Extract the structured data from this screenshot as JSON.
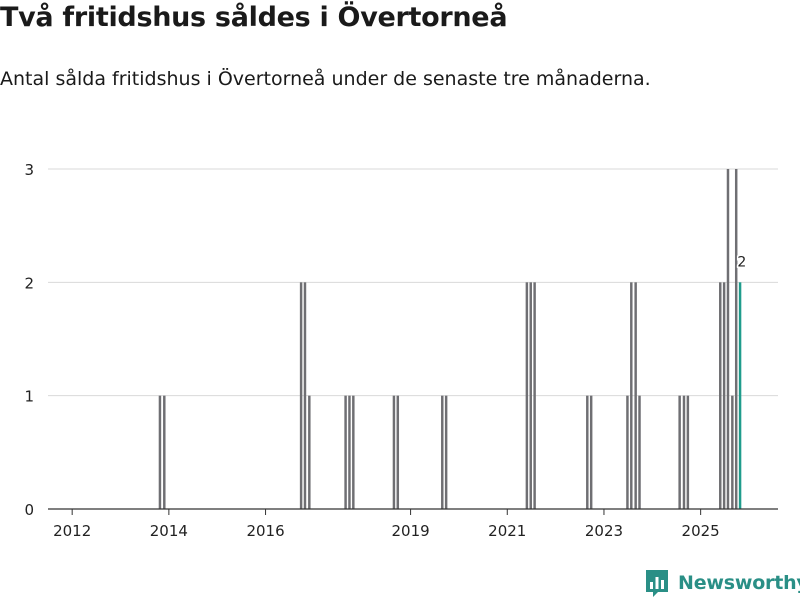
{
  "title": "Två fritidshus såldes i Övertorneå",
  "subtitle": "Antal sålda fritidshus i Övertorneå under de senaste tre månaderna.",
  "brand": {
    "name": "Newsworthy",
    "color": "#2a8f86",
    "icon": "newsworthy-chart-logo-icon"
  },
  "colors": {
    "bar": "#6f6f73",
    "highlight": "#1f9c8c",
    "grid": "#d9d9d9",
    "axis": "#333333"
  },
  "chart_data": {
    "type": "bar",
    "title": "Två fritidshus såldes i Övertorneå",
    "subtitle": "Antal sålda fritidshus i Övertorneå under de senaste tre månaderna.",
    "xlabel": "",
    "ylabel": "",
    "ylim": [
      0,
      3
    ],
    "xlim": [
      2011.5,
      2026.6
    ],
    "y_ticks": [
      "0",
      "1",
      "2",
      "3"
    ],
    "x_ticks": [
      "2012",
      "2014",
      "2016",
      "2019",
      "2021",
      "2023",
      "2025"
    ],
    "grid": true,
    "bar_width_years": 0.08,
    "series": [
      {
        "name": "Antal sålda fritidshus",
        "x": [
          2013.83,
          2013.92,
          2016.75,
          2016.83,
          2016.92,
          2017.67,
          2017.75,
          2017.83,
          2018.67,
          2018.75,
          2019.67,
          2019.75,
          2021.42,
          2021.5,
          2021.58,
          2022.67,
          2022.75,
          2023.5,
          2023.58,
          2023.67,
          2023.75,
          2024.58,
          2024.67,
          2024.75,
          2025.42,
          2025.5,
          2025.58,
          2025.67,
          2025.75,
          2025.83
        ],
        "values": [
          1,
          1,
          2,
          2,
          1,
          1,
          1,
          1,
          1,
          1,
          1,
          1,
          2,
          2,
          2,
          1,
          1,
          1,
          2,
          2,
          1,
          1,
          1,
          1,
          2,
          2,
          3,
          1,
          3,
          2
        ]
      }
    ],
    "highlight": {
      "x": 2025.83,
      "value": 2,
      "label": "2"
    }
  }
}
